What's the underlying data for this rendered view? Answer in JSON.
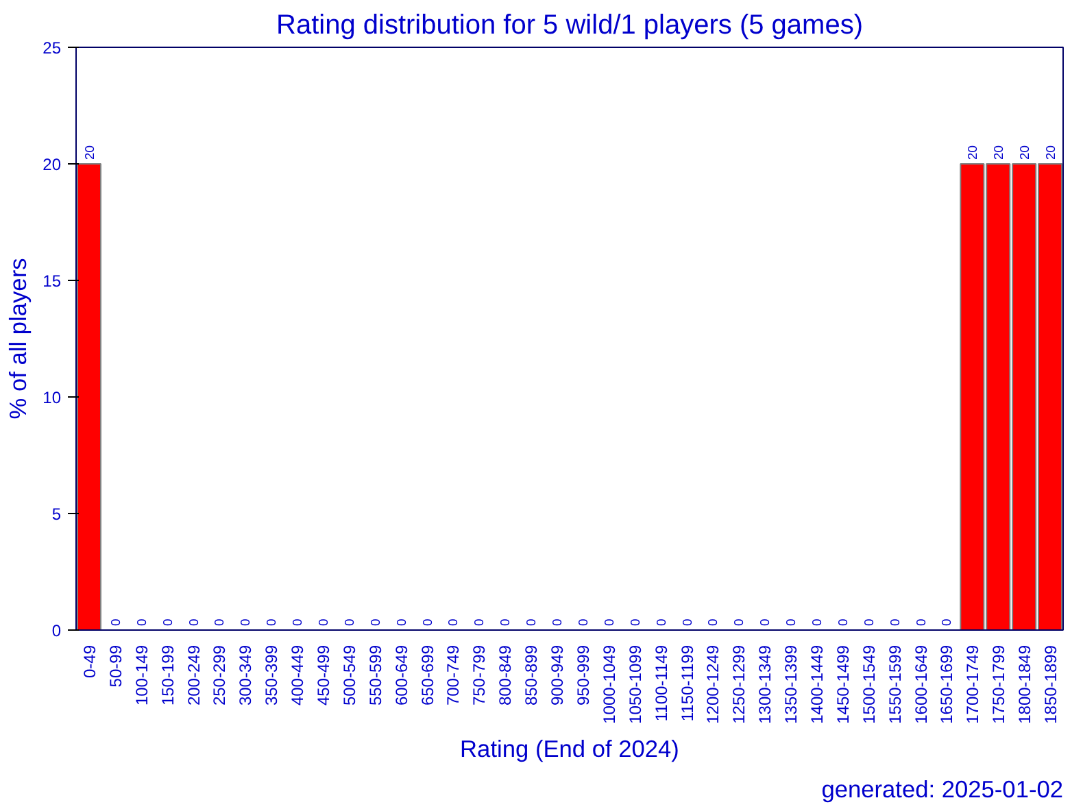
{
  "chart_data": {
    "type": "bar",
    "title": "Rating distribution for 5 wild/1 players (5 games)",
    "xlabel": "Rating (End of 2024)",
    "ylabel": "% of all players",
    "categories": [
      "0-49",
      "50-99",
      "100-149",
      "150-199",
      "200-249",
      "250-299",
      "300-349",
      "350-399",
      "400-449",
      "450-499",
      "500-549",
      "550-599",
      "600-649",
      "650-699",
      "700-749",
      "750-799",
      "800-849",
      "850-899",
      "900-949",
      "950-999",
      "1000-1049",
      "1050-1099",
      "1100-1149",
      "1150-1199",
      "1200-1249",
      "1250-1299",
      "1300-1349",
      "1350-1399",
      "1400-1449",
      "1450-1499",
      "1500-1549",
      "1550-1599",
      "1600-1649",
      "1650-1699",
      "1700-1749",
      "1750-1799",
      "1800-1849",
      "1850-1899"
    ],
    "values": [
      20,
      0,
      0,
      0,
      0,
      0,
      0,
      0,
      0,
      0,
      0,
      0,
      0,
      0,
      0,
      0,
      0,
      0,
      0,
      0,
      0,
      0,
      0,
      0,
      0,
      0,
      0,
      0,
      0,
      0,
      0,
      0,
      0,
      0,
      20,
      20,
      20,
      20
    ],
    "color": "#ff0000",
    "ylim": [
      0,
      25
    ],
    "yticks": [
      0,
      5,
      10,
      15,
      20,
      25
    ],
    "grid": false,
    "data_labels": true,
    "annotations": [
      "generated: 2025-01-02"
    ]
  }
}
